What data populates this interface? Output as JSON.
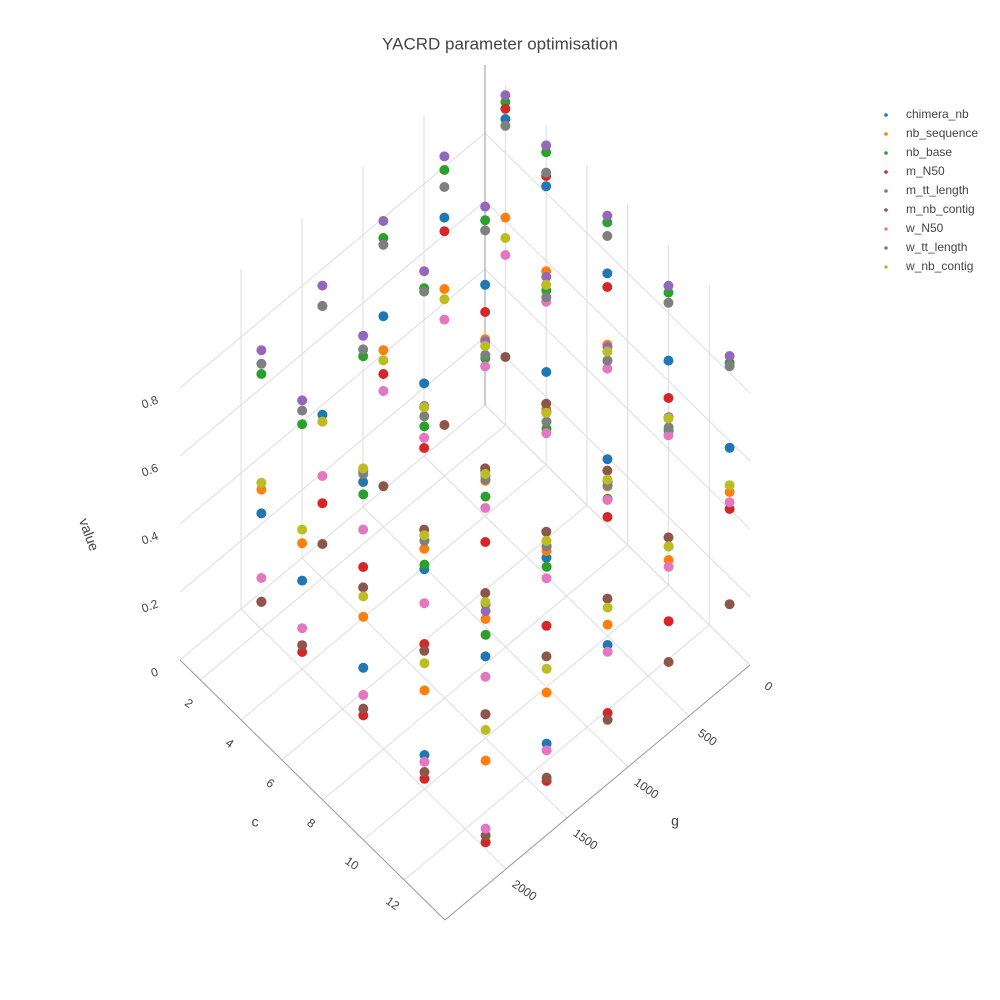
{
  "chart_data": {
    "type": "scatter3d",
    "title": "YACRD parameter optimisation",
    "x_label": "c",
    "y_label": "g",
    "z_label": "value",
    "xlim": [
      1,
      14
    ],
    "ylim": [
      0,
      2500
    ],
    "zlim": [
      0,
      1
    ],
    "xticks": [
      2,
      4,
      6,
      8,
      10,
      12
    ],
    "yticks": [
      0,
      500,
      1000,
      1500,
      2000
    ],
    "zticks": [
      0,
      0.2,
      0.4,
      0.6,
      0.8
    ],
    "grid": true,
    "legend": "top-right",
    "x": [
      2,
      2,
      2,
      2,
      2,
      4,
      4,
      4,
      4,
      4,
      7,
      7,
      7,
      7,
      7,
      10,
      10,
      10,
      10,
      10,
      13,
      13,
      13,
      13,
      13
    ],
    "y": [
      0,
      500,
      1000,
      1500,
      2000,
      0,
      500,
      1000,
      1500,
      2000,
      0,
      500,
      1000,
      1500,
      2000,
      0,
      500,
      1000,
      1500,
      2000,
      0,
      500,
      1000,
      1500,
      2000
    ],
    "series": [
      {
        "name": "chimera_nb",
        "color": "#1f77b4",
        "values": [
          0.9,
          0.76,
          0.62,
          0.48,
          0.34,
          0.82,
          0.68,
          0.54,
          0.4,
          0.26,
          0.74,
          0.6,
          0.46,
          0.32,
          0.18,
          0.66,
          0.52,
          0.38,
          0.24,
          0.1,
          0.58,
          0.44,
          0.3,
          0.16,
          0.02
        ]
      },
      {
        "name": "nb_sequence",
        "color": "#ff7f0e",
        "values": [
          0.61,
          0.55,
          0.52,
          0.46,
          0.41,
          0.57,
          0.52,
          0.47,
          0.43,
          0.37,
          0.53,
          0.49,
          0.43,
          0.38,
          0.33,
          0.49,
          0.44,
          0.4,
          0.35,
          0.29,
          0.45,
          0.4,
          0.36,
          0.31,
          0.26
        ]
      },
      {
        "name": "nb_base",
        "color": "#2ca02c",
        "values": [
          0.95,
          0.9,
          0.85,
          0.8,
          0.75,
          0.92,
          0.87,
          0.82,
          0.77,
          0.72,
          0.89,
          0.84,
          0.79,
          0.74,
          0.69,
          0.86,
          0.81,
          0.76,
          0.71,
          0.66,
          0.83,
          0.78,
          0.73,
          0.68,
          0.63
        ]
      },
      {
        "name": "m_N50",
        "color": "#d62728",
        "values": [
          0.93,
          0.72,
          0.45,
          0.22,
          0.08,
          0.85,
          0.6,
          0.35,
          0.15,
          0.05,
          0.7,
          0.48,
          0.25,
          0.1,
          0.04,
          0.55,
          0.35,
          0.18,
          0.07,
          0.03,
          0.4,
          0.22,
          0.1,
          0.05,
          0.02
        ]
      },
      {
        "name": "m_tt_length",
        "color": "#9467bd",
        "values": [
          0.97,
          0.94,
          0.9,
          0.86,
          0.82,
          0.94,
          0.91,
          0.87,
          0.83,
          0.79,
          0.91,
          0.88,
          0.84,
          0.8,
          0.76,
          0.88,
          0.85,
          0.81,
          0.77,
          0.73,
          0.85,
          0.82,
          0.78,
          0.74,
          0.7
        ]
      },
      {
        "name": "m_nb_contig",
        "color": "#8c564b",
        "values": [
          0.2,
          0.15,
          0.12,
          0.1,
          0.08,
          0.18,
          0.14,
          0.11,
          0.09,
          0.07,
          0.16,
          0.13,
          0.1,
          0.08,
          0.06,
          0.14,
          0.11,
          0.09,
          0.07,
          0.05,
          0.12,
          0.1,
          0.08,
          0.06,
          0.04
        ]
      },
      {
        "name": "w_N50",
        "color": "#e377c2",
        "values": [
          0.5,
          0.46,
          0.4,
          0.3,
          0.15,
          0.48,
          0.44,
          0.38,
          0.26,
          0.12,
          0.46,
          0.42,
          0.35,
          0.22,
          0.1,
          0.44,
          0.4,
          0.32,
          0.18,
          0.08,
          0.42,
          0.38,
          0.28,
          0.14,
          0.06
        ]
      },
      {
        "name": "w_tt_length",
        "color": "#7f7f7f",
        "values": [
          0.88,
          0.85,
          0.83,
          0.8,
          0.78,
          0.86,
          0.84,
          0.81,
          0.79,
          0.76,
          0.85,
          0.82,
          0.8,
          0.77,
          0.75,
          0.83,
          0.81,
          0.78,
          0.76,
          0.73,
          0.82,
          0.79,
          0.77,
          0.74,
          0.72
        ]
      },
      {
        "name": "w_nb_contig",
        "color": "#bcbd22",
        "values": [
          0.55,
          0.52,
          0.49,
          0.46,
          0.43,
          0.53,
          0.5,
          0.47,
          0.44,
          0.41,
          0.51,
          0.48,
          0.45,
          0.42,
          0.39,
          0.49,
          0.46,
          0.43,
          0.4,
          0.37,
          0.47,
          0.44,
          0.41,
          0.38,
          0.35
        ]
      }
    ]
  }
}
